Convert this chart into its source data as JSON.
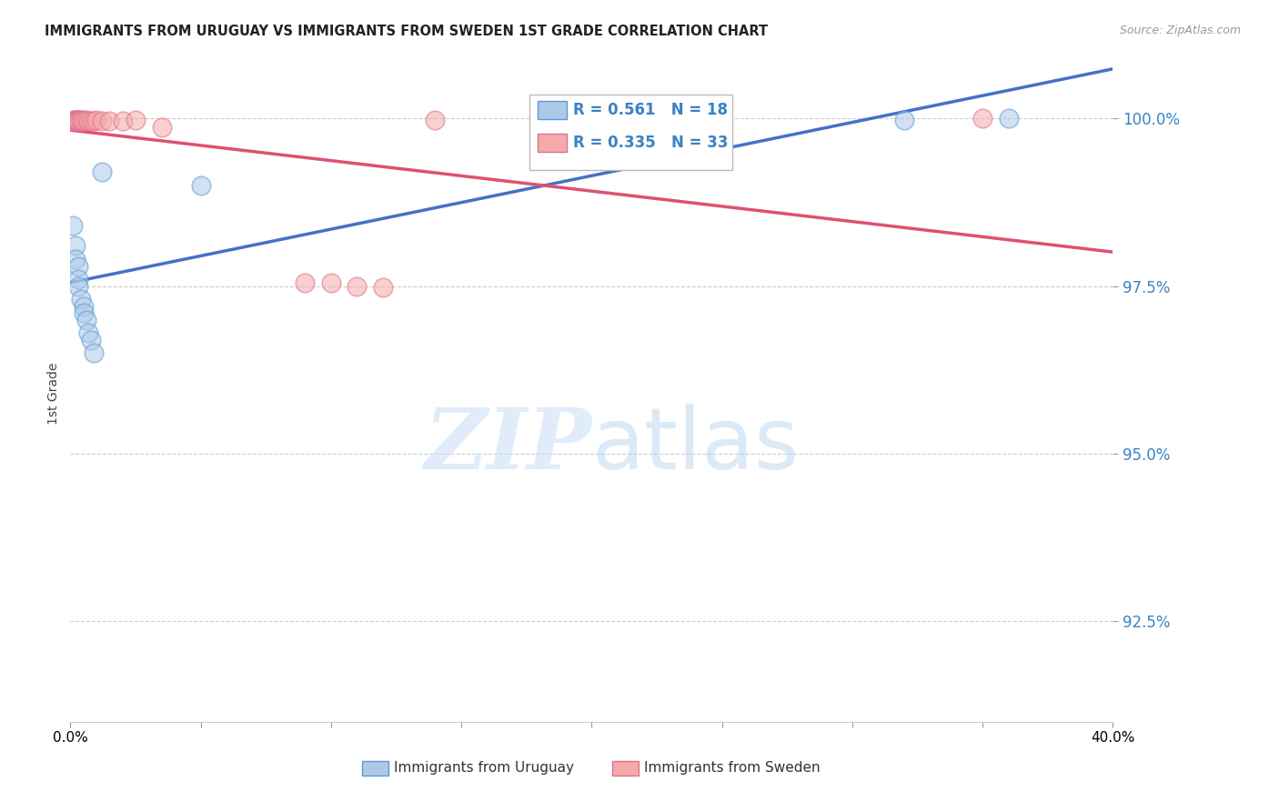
{
  "title": "IMMIGRANTS FROM URUGUAY VS IMMIGRANTS FROM SWEDEN 1ST GRADE CORRELATION CHART",
  "source": "Source: ZipAtlas.com",
  "ylabel": "1st Grade",
  "xlim": [
    0.0,
    0.4
  ],
  "ylim": [
    0.91,
    1.008
  ],
  "yticks": [
    0.925,
    0.95,
    0.975,
    1.0
  ],
  "ytick_labels": [
    "92.5%",
    "95.0%",
    "97.5%",
    "100.0%"
  ],
  "xticks": [
    0.0,
    0.05,
    0.1,
    0.15,
    0.2,
    0.25,
    0.3,
    0.35,
    0.4
  ],
  "background_color": "#ffffff",
  "grid_color": "#cccccc",
  "blue_color": "#aec9e8",
  "pink_color": "#f4aaaa",
  "blue_edge_color": "#5b9bd5",
  "pink_edge_color": "#e07090",
  "blue_line_color": "#4472c4",
  "pink_line_color": "#e05070",
  "legend_R_blue": "0.561",
  "legend_N_blue": "18",
  "legend_R_pink": "0.335",
  "legend_N_pink": "33",
  "label_uruguay": "Immigrants from Uruguay",
  "label_sweden": "Immigrants from Sweden",
  "watermark_zip": "ZIP",
  "watermark_atlas": "atlas",
  "blue_x": [
    0.001,
    0.002,
    0.002,
    0.003,
    0.003,
    0.003,
    0.004,
    0.005,
    0.005,
    0.006,
    0.007,
    0.008,
    0.009,
    0.012,
    0.05,
    0.22,
    0.32,
    0.36
  ],
  "blue_y": [
    0.984,
    0.981,
    0.979,
    0.978,
    0.976,
    0.975,
    0.973,
    0.972,
    0.971,
    0.97,
    0.968,
    0.967,
    0.965,
    0.992,
    0.99,
    0.9998,
    0.9998,
    1.0
  ],
  "pink_x": [
    0.001,
    0.001,
    0.002,
    0.002,
    0.002,
    0.002,
    0.003,
    0.003,
    0.003,
    0.003,
    0.003,
    0.003,
    0.004,
    0.004,
    0.004,
    0.005,
    0.005,
    0.006,
    0.007,
    0.008,
    0.009,
    0.01,
    0.012,
    0.015,
    0.02,
    0.025,
    0.035,
    0.09,
    0.1,
    0.11,
    0.12,
    0.14,
    0.35
  ],
  "pink_y": [
    0.9998,
    0.9997,
    0.9998,
    0.9998,
    0.9997,
    0.9996,
    0.9998,
    0.9998,
    0.9998,
    0.9997,
    0.9997,
    0.9996,
    0.9997,
    0.9998,
    0.9998,
    0.9998,
    0.9997,
    0.9998,
    0.9997,
    0.9997,
    0.9997,
    0.9998,
    0.9997,
    0.9997,
    0.9996,
    0.9998,
    0.9987,
    0.9755,
    0.9755,
    0.975,
    0.9748,
    0.9998,
    1.0
  ]
}
